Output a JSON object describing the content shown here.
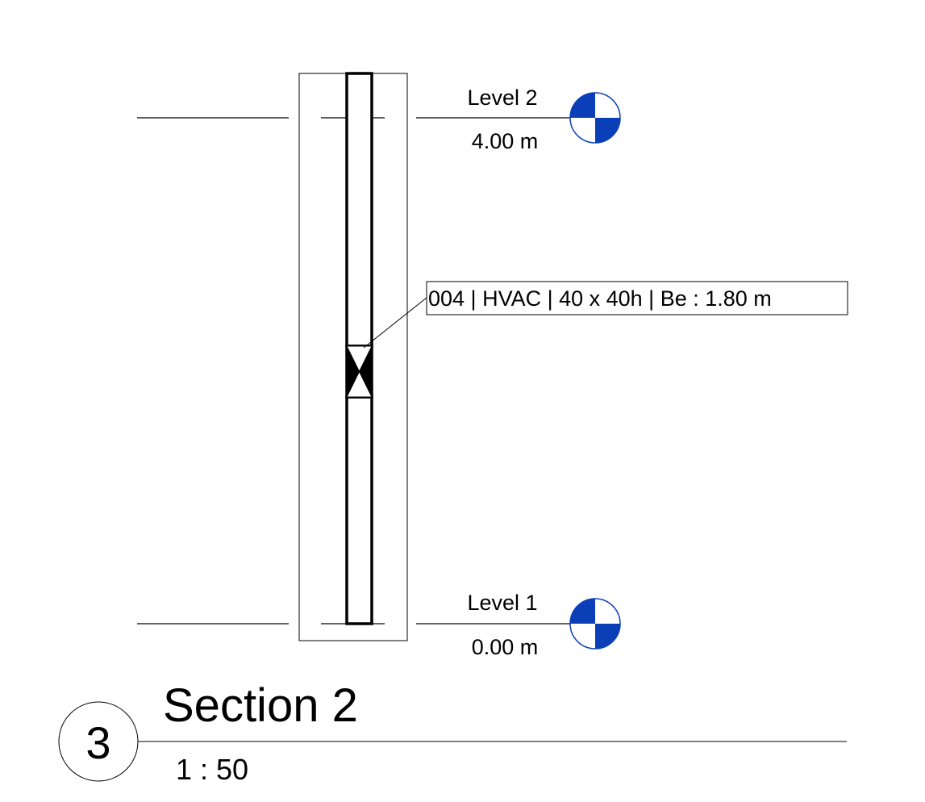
{
  "levels": [
    {
      "name": "Level 2",
      "elevation": "4.00 m"
    },
    {
      "name": "Level 1",
      "elevation": "0.00 m"
    }
  ],
  "tag": {
    "text": "004 | HVAC | 40 x 40h | Be : 1.80 m"
  },
  "view_title": {
    "number": "3",
    "name": "Section 2",
    "scale": "1 : 50"
  },
  "colors": {
    "level_marker": "#0a3fb8",
    "line": "#000000"
  }
}
